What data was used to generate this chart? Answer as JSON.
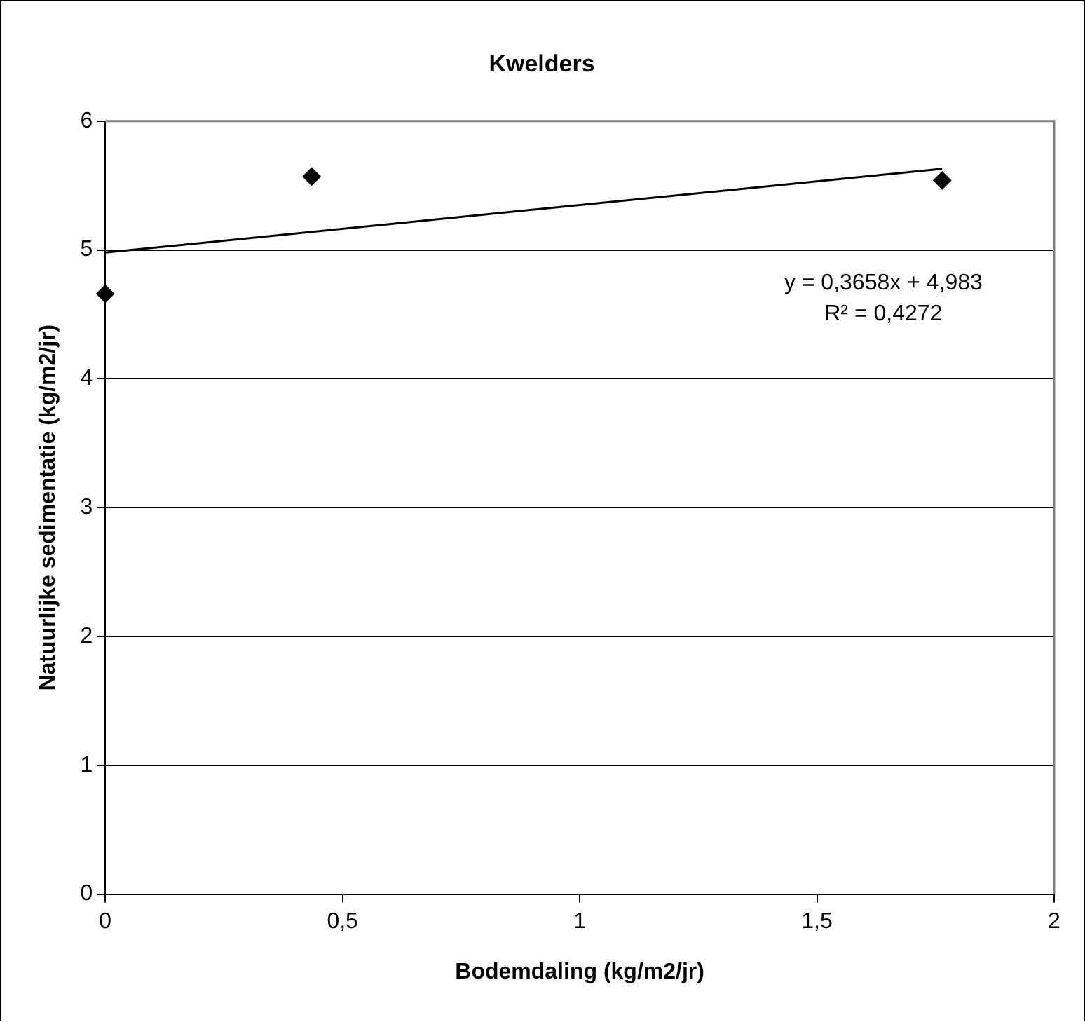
{
  "chart_data": {
    "type": "scatter",
    "title": "Kwelders",
    "xlabel": "Bodemdaling (kg/m2/jr)",
    "ylabel": "Natuurlijke sedimentatie (kg/m2/jr)",
    "x": [
      0,
      0.435,
      1.764
    ],
    "marker": "diamond",
    "series": [
      {
        "color": "#000000",
        "values": [
          4.66,
          5.57,
          5.54
        ]
      },
      {
        "type": "line",
        "color": "#000000",
        "x": [
          0,
          1.764
        ],
        "values": [
          4.98,
          5.63
        ],
        "marker": "none"
      }
    ],
    "xlim": [
      0,
      2
    ],
    "xticks": [
      0,
      {
        "value": 0.5,
        "label": "0,5"
      },
      1,
      {
        "value": 1.5,
        "label": "1,5"
      },
      2
    ],
    "ylim": [
      0,
      6
    ],
    "yticks": [
      0,
      1,
      2,
      3,
      4,
      5,
      6
    ],
    "grid": "y",
    "legend": false,
    "annotations": [
      "y = 0,3658x + 4,983",
      "R² = 0,4272"
    ]
  }
}
